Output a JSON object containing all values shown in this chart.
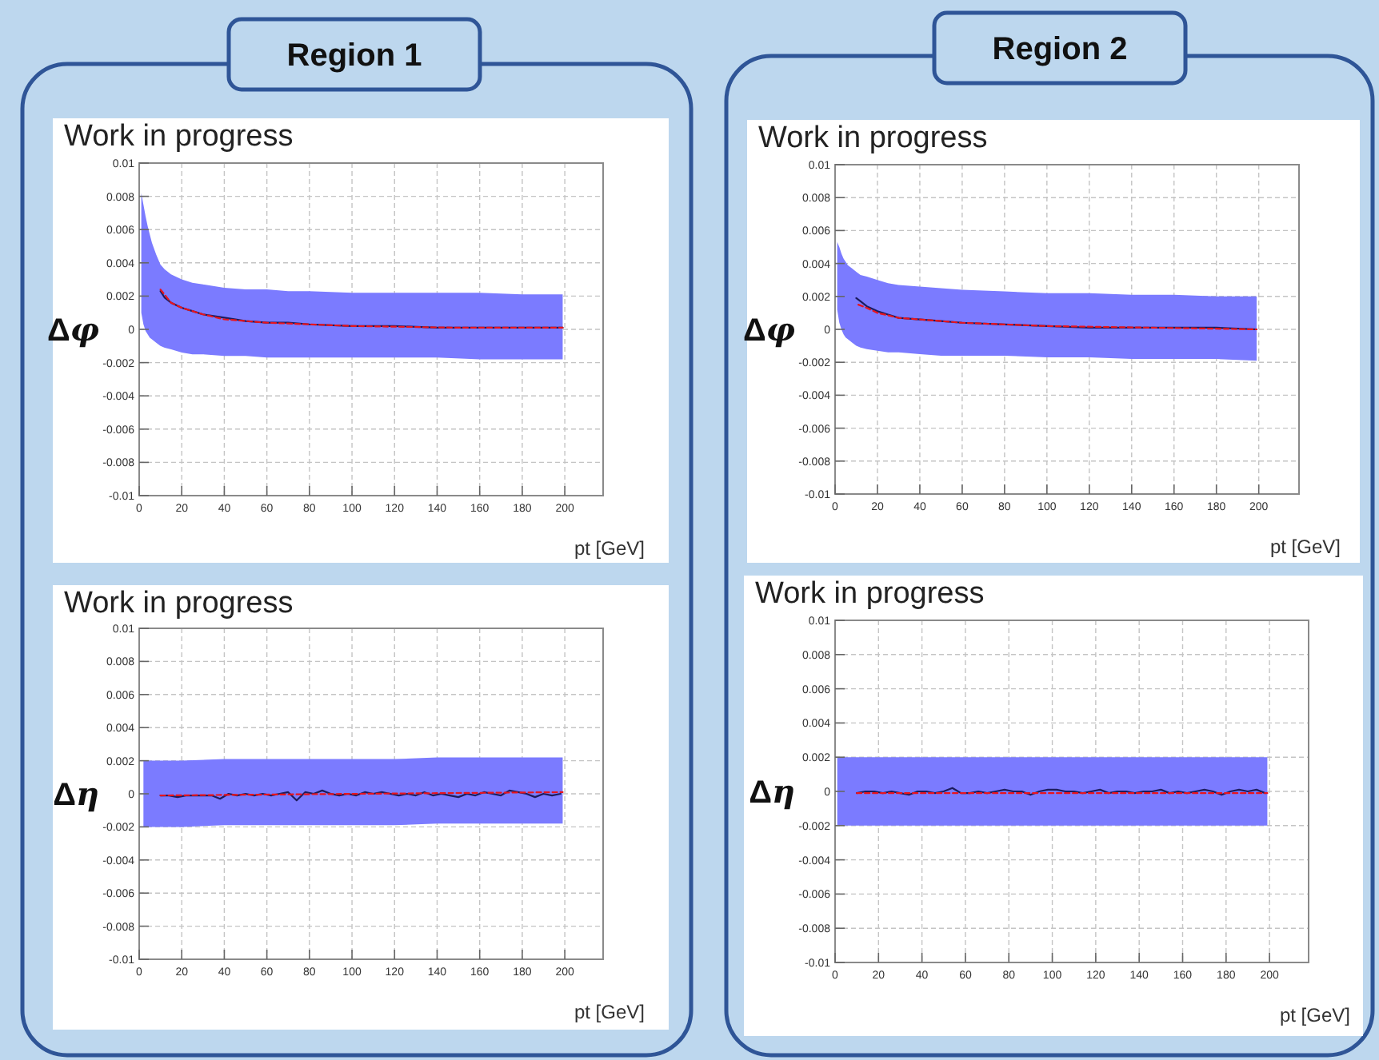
{
  "chart_data": [
    {
      "type": "line",
      "title": "Region 1",
      "subtitle": "Work in progress",
      "xlabel": "pt [GeV]",
      "ylabel": "Δφ",
      "xlim": [
        0,
        218
      ],
      "ylim": [
        -0.01,
        0.01
      ],
      "xticks": [
        0,
        20,
        40,
        60,
        80,
        100,
        120,
        140,
        160,
        180,
        200
      ],
      "yticks": [
        -0.01,
        -0.008,
        -0.006,
        -0.004,
        -0.002,
        0,
        0.002,
        0.004,
        0.006,
        0.008,
        0.01
      ],
      "grid": true,
      "series": [
        {
          "color": "#7b7bff",
          "x": [
            1,
            2,
            3,
            4,
            5,
            6,
            8,
            10,
            12,
            15,
            20,
            25,
            30,
            40,
            50,
            60,
            70,
            80,
            100,
            120,
            140,
            160,
            180,
            199
          ],
          "values": [
            null,
            null,
            null,
            null,
            null,
            null,
            null,
            null,
            null,
            null,
            null,
            null,
            null,
            null,
            null,
            null,
            null,
            null,
            null,
            null,
            null,
            null,
            null,
            null
          ],
          "upper": [
            0.0082,
            0.0075,
            0.0068,
            0.0062,
            0.0057,
            0.0052,
            0.0045,
            0.0039,
            0.0036,
            0.0033,
            0.003,
            0.0028,
            0.0027,
            0.0025,
            0.0024,
            0.0024,
            0.0023,
            0.0023,
            0.0022,
            0.0022,
            0.0022,
            0.0022,
            0.0021,
            0.0021
          ],
          "lower": [
            0.001,
            0.0003,
            -0.0001,
            -0.0003,
            -0.0005,
            -0.0006,
            -0.0008,
            -0.001,
            -0.0011,
            -0.0012,
            -0.0014,
            -0.0015,
            -0.0015,
            -0.0016,
            -0.0016,
            -0.0017,
            -0.0017,
            -0.0017,
            -0.0017,
            -0.0017,
            -0.0017,
            -0.0018,
            -0.0018,
            -0.0018
          ]
        },
        {
          "color": "#1c1c5e",
          "x": [
            10,
            12,
            15,
            20,
            25,
            30,
            40,
            50,
            60,
            70,
            80,
            100,
            120,
            140,
            160,
            180,
            199
          ],
          "values": [
            0.0023,
            0.0019,
            0.0016,
            0.0013,
            0.0011,
            0.0009,
            0.0007,
            0.0005,
            0.0004,
            0.0004,
            0.0003,
            0.0002,
            0.0002,
            0.0001,
            0.0001,
            0.0001,
            0.0001
          ]
        },
        {
          "color": "#e8141e",
          "line_style": "dashed",
          "x": [
            10,
            15,
            20,
            30,
            40,
            60,
            80,
            100,
            150,
            199
          ],
          "values": [
            0.0024,
            0.0016,
            0.0013,
            0.0009,
            0.0006,
            0.0004,
            0.0003,
            0.0002,
            0.0001,
            0.0001
          ]
        }
      ]
    },
    {
      "type": "line",
      "title": "Region 2",
      "subtitle": "Work in progress",
      "xlabel": "pt [GeV]",
      "ylabel": "Δφ",
      "xlim": [
        0,
        219
      ],
      "ylim": [
        -0.01,
        0.01
      ],
      "xticks": [
        0,
        20,
        40,
        60,
        80,
        100,
        120,
        140,
        160,
        180,
        200
      ],
      "yticks": [
        -0.01,
        -0.008,
        -0.006,
        -0.004,
        -0.002,
        0,
        0.002,
        0.004,
        0.006,
        0.008,
        0.01
      ],
      "grid": true,
      "series": [
        {
          "color": "#7b7bff",
          "x": [
            1,
            2,
            3,
            4,
            5,
            6,
            8,
            10,
            12,
            15,
            20,
            25,
            30,
            40,
            50,
            60,
            80,
            100,
            120,
            140,
            160,
            180,
            199
          ],
          "values": [
            null,
            null,
            null,
            null,
            null,
            null,
            null,
            null,
            null,
            null,
            null,
            null,
            null,
            null,
            null,
            null,
            null,
            null,
            null,
            null,
            null,
            null,
            null
          ],
          "upper": [
            0.0053,
            0.005,
            0.0046,
            0.0043,
            0.0041,
            0.0039,
            0.0037,
            0.0035,
            0.0033,
            0.0032,
            0.003,
            0.0028,
            0.0027,
            0.0026,
            0.0025,
            0.0024,
            0.0023,
            0.0022,
            0.0022,
            0.0021,
            0.0021,
            0.002,
            0.002
          ],
          "lower": [
            0.0012,
            0.0004,
            0,
            -0.0003,
            -0.0005,
            -0.0006,
            -0.0008,
            -0.001,
            -0.0011,
            -0.0012,
            -0.0013,
            -0.0014,
            -0.0014,
            -0.0015,
            -0.0016,
            -0.0016,
            -0.0016,
            -0.0017,
            -0.0017,
            -0.0018,
            -0.0018,
            -0.0018,
            -0.0019
          ]
        },
        {
          "color": "#1c1c5e",
          "x": [
            10,
            12,
            15,
            20,
            25,
            30,
            40,
            50,
            60,
            80,
            100,
            120,
            140,
            160,
            180,
            199
          ],
          "values": [
            0.0019,
            0.0017,
            0.0014,
            0.0011,
            0.0009,
            0.0007,
            0.0006,
            0.0005,
            0.0004,
            0.0003,
            0.0002,
            0.0001,
            0.0001,
            0.0001,
            0.0001,
            0
          ]
        },
        {
          "color": "#e8141e",
          "line_style": "dashed",
          "x": [
            11,
            15,
            20,
            30,
            40,
            60,
            80,
            100,
            150,
            199
          ],
          "values": [
            0.0015,
            0.0013,
            0.001,
            0.0007,
            0.0006,
            0.0004,
            0.0003,
            0.0002,
            0.0001,
            0
          ]
        }
      ]
    },
    {
      "type": "line",
      "subtitle": "Work in progress",
      "xlabel": "pt [GeV]",
      "ylabel": "Δη",
      "xlim": [
        0,
        218
      ],
      "ylim": [
        -0.01,
        0.01
      ],
      "xticks": [
        0,
        20,
        40,
        60,
        80,
        100,
        120,
        140,
        160,
        180,
        200
      ],
      "yticks": [
        -0.01,
        -0.008,
        -0.006,
        -0.004,
        -0.002,
        0,
        0.002,
        0.004,
        0.006,
        0.008,
        0.01
      ],
      "grid": true,
      "series": [
        {
          "color": "#7b7bff",
          "x": [
            2,
            20,
            40,
            60,
            80,
            100,
            120,
            140,
            160,
            180,
            199
          ],
          "values": [
            null,
            null,
            null,
            null,
            null,
            null,
            null,
            null,
            null,
            null,
            null
          ],
          "upper": [
            0.002,
            0.002,
            0.0021,
            0.0021,
            0.0021,
            0.0021,
            0.0021,
            0.0022,
            0.0022,
            0.0022,
            0.0022
          ],
          "lower": [
            -0.002,
            -0.002,
            -0.0019,
            -0.0019,
            -0.0019,
            -0.0019,
            -0.0019,
            -0.0018,
            -0.0018,
            -0.0018,
            -0.0018
          ]
        },
        {
          "color": "#1c1c5e",
          "x": [
            10,
            14,
            18,
            22,
            26,
            30,
            34,
            38,
            42,
            46,
            50,
            54,
            58,
            62,
            66,
            70,
            74,
            78,
            82,
            86,
            90,
            94,
            98,
            102,
            106,
            110,
            114,
            118,
            122,
            126,
            130,
            134,
            138,
            142,
            146,
            150,
            154,
            158,
            162,
            166,
            170,
            174,
            178,
            182,
            186,
            190,
            194,
            198
          ],
          "values": [
            -0.0001,
            -0.0001,
            -0.0002,
            -0.0001,
            -0.0001,
            -0.0001,
            -0.0001,
            -0.0003,
            0,
            -0.0001,
            0,
            -0.0001,
            0,
            -0.0001,
            0,
            0.0001,
            -0.0004,
            0.0001,
            0,
            0.0002,
            0,
            -0.0001,
            0,
            -0.0001,
            0.0001,
            0,
            0.0001,
            0,
            -0.0001,
            0,
            -0.0001,
            0.0001,
            -0.0001,
            0,
            -0.0001,
            -0.0002,
            0,
            -0.0001,
            0.0001,
            0,
            -0.0001,
            0.0002,
            0.0001,
            0,
            -0.0002,
            0,
            -0.0001,
            0
          ]
        },
        {
          "color": "#e8141e",
          "line_style": "dashed",
          "x": [
            10,
            199
          ],
          "values": [
            -0.0001,
            0.0001
          ]
        }
      ]
    },
    {
      "type": "line",
      "subtitle": "Work in progress",
      "xlabel": "pt [GeV]",
      "ylabel": "Δη",
      "xlim": [
        0,
        218
      ],
      "ylim": [
        -0.01,
        0.01
      ],
      "xticks": [
        0,
        20,
        40,
        60,
        80,
        100,
        120,
        140,
        160,
        180,
        200
      ],
      "yticks": [
        -0.01,
        -0.008,
        -0.006,
        -0.004,
        -0.002,
        0,
        0.002,
        0.004,
        0.006,
        0.008,
        0.01
      ],
      "grid": true,
      "series": [
        {
          "color": "#7b7bff",
          "x": [
            1,
            199
          ],
          "values": [
            null,
            null
          ],
          "upper": [
            0.002,
            0.002
          ],
          "lower": [
            -0.002,
            -0.002
          ]
        },
        {
          "color": "#1c1c5e",
          "x": [
            10,
            14,
            18,
            22,
            26,
            30,
            34,
            38,
            42,
            46,
            50,
            54,
            58,
            62,
            66,
            70,
            74,
            78,
            82,
            86,
            90,
            94,
            98,
            102,
            106,
            110,
            114,
            118,
            122,
            126,
            130,
            134,
            138,
            142,
            146,
            150,
            154,
            158,
            162,
            166,
            170,
            174,
            178,
            182,
            186,
            190,
            194,
            198
          ],
          "values": [
            -0.0001,
            0,
            0,
            -0.0001,
            0,
            -0.0001,
            -0.0002,
            0,
            0,
            -0.0001,
            0,
            0.0002,
            -0.0001,
            -0.0001,
            0,
            -0.0001,
            0,
            0.0001,
            0,
            0,
            -0.0002,
            0,
            0.0001,
            0.0001,
            0,
            0,
            -0.0001,
            0,
            0.0001,
            -0.0001,
            0,
            0,
            -0.0001,
            0,
            0,
            0.0001,
            -0.0001,
            0,
            -0.0001,
            0,
            0.0001,
            0,
            -0.0002,
            0,
            0.0001,
            0,
            0.0001,
            -0.0001
          ]
        },
        {
          "color": "#e8141e",
          "line_style": "dashed",
          "x": [
            10,
            199
          ],
          "values": [
            -0.0001,
            -0.0001
          ]
        }
      ]
    }
  ]
}
